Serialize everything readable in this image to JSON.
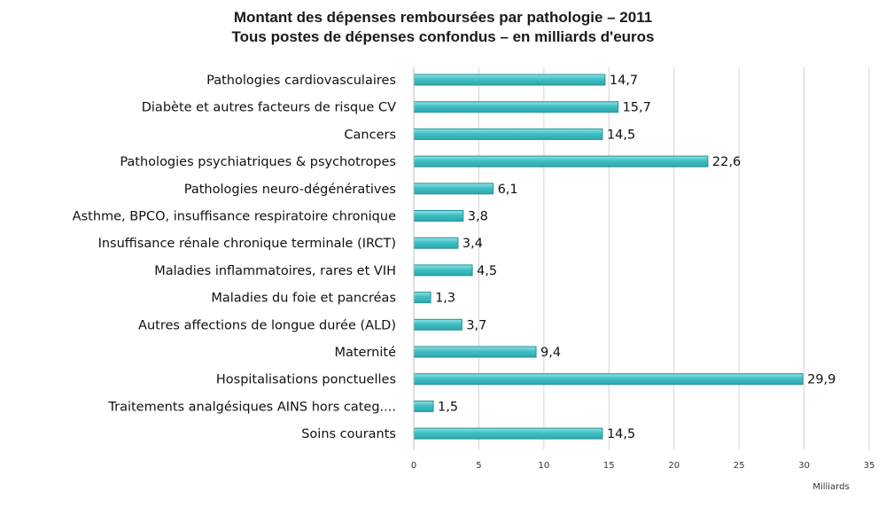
{
  "chart_data": {
    "type": "bar",
    "orientation": "horizontal",
    "title": "Montant des dépenses remboursées par pathologie – 2011",
    "subtitle": "Tous postes de dépenses confondus – en milliards d'euros",
    "categories": [
      "Pathologies cardiovasculaires",
      "Diabète et autres facteurs de risque CV",
      "Cancers",
      "Pathologies psychiatriques & psychotropes",
      "Pathologies neuro-dégénératives",
      "Asthme, BPCO, insuffisance respiratoire chronique",
      "Insuffisance rénale chronique terminale (IRCT)",
      "Maladies inflammatoires, rares et VIH",
      "Maladies du foie et pancréas",
      "Autres affections de longue durée (ALD)",
      "Maternité",
      "Hospitalisations ponctuelles",
      "Traitements analgésiques AINS hors categ....",
      "Soins courants"
    ],
    "values": [
      14.7,
      15.7,
      14.5,
      22.6,
      6.1,
      3.8,
      3.4,
      4.5,
      1.3,
      3.7,
      9.4,
      29.9,
      1.5,
      14.5
    ],
    "value_labels": [
      "14,7",
      "15,7",
      "14,5",
      "22,6",
      "6,1",
      "3,8",
      "3,4",
      "4,5",
      "1,3",
      "3,7",
      "9,4",
      "29,9",
      "1,5",
      "14,5"
    ],
    "xlim": [
      0,
      35
    ],
    "xticks": [
      0,
      5,
      10,
      15,
      20,
      25,
      30,
      35
    ],
    "xlabel": "Milliards",
    "ylabel": "",
    "grid": true,
    "bar_color": "#3fbfc4",
    "bar_edge_color": "#2a8f94"
  }
}
